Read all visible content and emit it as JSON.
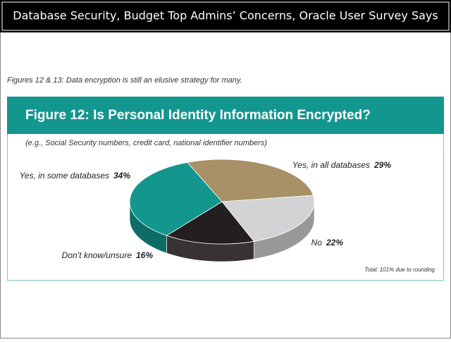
{
  "header": {
    "title": "Database Security, Budget Top Admins’ Concerns, Oracle User Survey Says"
  },
  "caption": "Figures 12 & 13: Data encryption is still an elusive strategy for many.",
  "chart_data": {
    "type": "pie",
    "title": "Figure 12:  Is Personal Identity Information Encrypted?",
    "subtitle": "(e.g., Social Security numbers, credit card, national identifier numbers)",
    "categories": [
      "Yes, in all databases",
      "No",
      "Don’t know/unsure",
      "Yes, in some databases"
    ],
    "values": [
      29,
      22,
      16,
      34
    ],
    "value_labels": [
      "29%",
      "22%",
      "16%",
      "34%"
    ],
    "colors": [
      "#a89067",
      "#d3d3d5",
      "#231f20",
      "#13968e"
    ],
    "note": "Total: 101% due to rounding"
  }
}
